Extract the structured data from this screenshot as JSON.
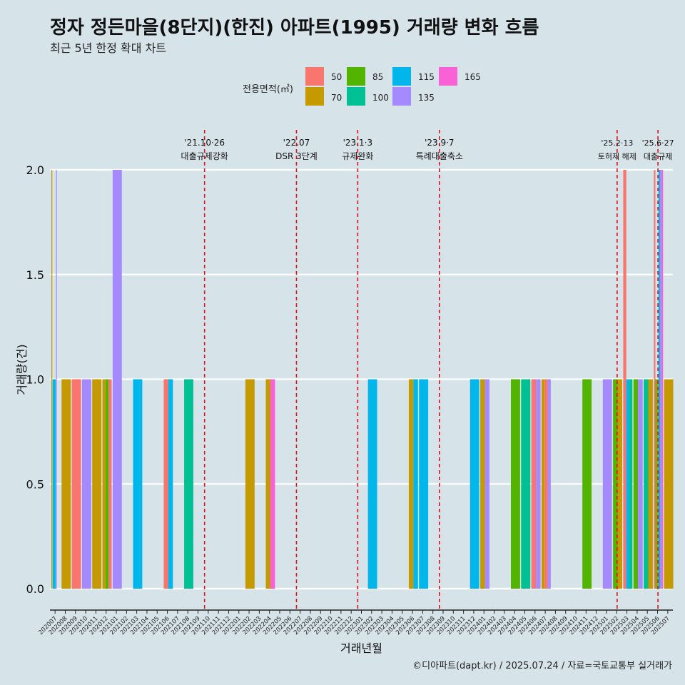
{
  "title": "정자 정든마을(8단지)(한진) 아파트(1995) 거래량 변화 흐름",
  "subtitle": "최근 5년 한정 확대 차트",
  "caption": "©디아파트(dapt.kr) / 2025.07.24 / 자료=국토교통부 실거래가",
  "legend": {
    "title": "전용면적(㎡)",
    "items": [
      {
        "label": "50",
        "color": "#F8766D"
      },
      {
        "label": "70",
        "color": "#C49A00"
      },
      {
        "label": "85",
        "color": "#53B400"
      },
      {
        "label": "100",
        "color": "#00C094"
      },
      {
        "label": "115",
        "color": "#00B6EB"
      },
      {
        "label": "135",
        "color": "#A58AFF"
      },
      {
        "label": "165",
        "color": "#FB61D7"
      }
    ]
  },
  "chart_data": {
    "type": "bar",
    "xlabel": "거래년월",
    "ylabel": "거래량(건)",
    "ylim": [
      0,
      2.12
    ],
    "yticks": [
      0.0,
      0.5,
      1.0,
      1.5,
      2.0
    ],
    "ytick_labels": [
      "0.0",
      "0.5",
      "1.0",
      "1.5",
      "2.0"
    ],
    "categories": [
      "202007",
      "202008",
      "202009",
      "202010",
      "202011",
      "202012",
      "202101",
      "202102",
      "202103",
      "202104",
      "202105",
      "202106",
      "202107",
      "202108",
      "202109",
      "202110",
      "202111",
      "202112",
      "202201",
      "202202",
      "202203",
      "202204",
      "202205",
      "202206",
      "202207",
      "202208",
      "202209",
      "202210",
      "202211",
      "202212",
      "202301",
      "202302",
      "202303",
      "202304",
      "202305",
      "202306",
      "202307",
      "202308",
      "202309",
      "202310",
      "202311",
      "202312",
      "202401",
      "202402",
      "202403",
      "202404",
      "202405",
      "202406",
      "202407",
      "202408",
      "202409",
      "202410",
      "202411",
      "202412",
      "202501",
      "202502",
      "202503",
      "202504",
      "202505",
      "202506",
      "202507"
    ],
    "bars": [
      {
        "x": 0.0,
        "w": 0.09,
        "value": 2,
        "color": "#C49A00"
      },
      {
        "x": 0.12,
        "w": 0.3,
        "value": 1,
        "color": "#00B6EB"
      },
      {
        "x": 0.45,
        "w": 0.09,
        "value": 2,
        "color": "#A58AFF"
      },
      {
        "x": 1.0,
        "w": 0.9,
        "value": 1,
        "color": "#C49A00"
      },
      {
        "x": 2.0,
        "w": 0.9,
        "value": 1,
        "color": "#F8766D"
      },
      {
        "x": 3.0,
        "w": 0.9,
        "value": 1,
        "color": "#A58AFF"
      },
      {
        "x": 4.0,
        "w": 0.9,
        "value": 1,
        "color": "#C49A00"
      },
      {
        "x": 5.0,
        "w": 0.3,
        "value": 1,
        "color": "#C49A00"
      },
      {
        "x": 5.3,
        "w": 0.3,
        "value": 1,
        "color": "#53B400"
      },
      {
        "x": 5.6,
        "w": 0.3,
        "value": 1,
        "color": "#F8766D"
      },
      {
        "x": 6.0,
        "w": 0.9,
        "value": 2,
        "color": "#A58AFF"
      },
      {
        "x": 8.0,
        "w": 0.9,
        "value": 1,
        "color": "#00B6EB"
      },
      {
        "x": 11.0,
        "w": 0.45,
        "value": 1,
        "color": "#F8766D"
      },
      {
        "x": 11.45,
        "w": 0.45,
        "value": 1,
        "color": "#00B6EB"
      },
      {
        "x": 13.0,
        "w": 0.9,
        "value": 1,
        "color": "#00C094"
      },
      {
        "x": 19.0,
        "w": 0.9,
        "value": 1,
        "color": "#C49A00"
      },
      {
        "x": 21.0,
        "w": 0.45,
        "value": 1,
        "color": "#C49A00"
      },
      {
        "x": 21.45,
        "w": 0.45,
        "value": 1,
        "color": "#FB61D7"
      },
      {
        "x": 31.0,
        "w": 0.9,
        "value": 1,
        "color": "#00B6EB"
      },
      {
        "x": 35.0,
        "w": 0.45,
        "value": 1,
        "color": "#C49A00"
      },
      {
        "x": 35.45,
        "w": 0.45,
        "value": 1,
        "color": "#00B6EB"
      },
      {
        "x": 36.0,
        "w": 0.9,
        "value": 1,
        "color": "#00B6EB"
      },
      {
        "x": 41.0,
        "w": 0.9,
        "value": 1,
        "color": "#00B6EB"
      },
      {
        "x": 42.0,
        "w": 0.45,
        "value": 1,
        "color": "#C49A00"
      },
      {
        "x": 42.45,
        "w": 0.45,
        "value": 1,
        "color": "#A58AFF"
      },
      {
        "x": 45.0,
        "w": 0.9,
        "value": 1,
        "color": "#53B400"
      },
      {
        "x": 46.0,
        "w": 0.9,
        "value": 1,
        "color": "#00C094"
      },
      {
        "x": 47.0,
        "w": 0.45,
        "value": 1,
        "color": "#F8766D"
      },
      {
        "x": 47.45,
        "w": 0.45,
        "value": 1,
        "color": "#A58AFF"
      },
      {
        "x": 48.0,
        "w": 0.3,
        "value": 1,
        "color": "#C49A00"
      },
      {
        "x": 48.3,
        "w": 0.3,
        "value": 1,
        "color": "#F8766D"
      },
      {
        "x": 48.6,
        "w": 0.3,
        "value": 1,
        "color": "#A58AFF"
      },
      {
        "x": 52.0,
        "w": 0.9,
        "value": 1,
        "color": "#53B400"
      },
      {
        "x": 54.0,
        "w": 0.9,
        "value": 1,
        "color": "#A58AFF"
      },
      {
        "x": 55.0,
        "w": 0.45,
        "value": 1,
        "color": "#53B400"
      },
      {
        "x": 55.45,
        "w": 0.45,
        "value": 1,
        "color": "#C49A00"
      },
      {
        "x": 56.0,
        "w": 0.3,
        "value": 2,
        "color": "#F8766D"
      },
      {
        "x": 56.3,
        "w": 0.3,
        "value": 1,
        "color": "#00B6EB"
      },
      {
        "x": 56.6,
        "w": 0.3,
        "value": 1,
        "color": "#00C094"
      },
      {
        "x": 57.0,
        "w": 0.45,
        "value": 1,
        "color": "#53B400"
      },
      {
        "x": 57.45,
        "w": 0.45,
        "value": 1,
        "color": "#A58AFF"
      },
      {
        "x": 58.0,
        "w": 0.45,
        "value": 1,
        "color": "#00C094"
      },
      {
        "x": 58.45,
        "w": 0.45,
        "value": 1,
        "color": "#C49A00"
      },
      {
        "x": 59.0,
        "w": 0.15,
        "value": 2,
        "color": "#F8766D"
      },
      {
        "x": 59.15,
        "w": 0.15,
        "value": 1,
        "color": "#53B400"
      },
      {
        "x": 59.3,
        "w": 0.15,
        "value": 1,
        "color": "#C49A00"
      },
      {
        "x": 59.45,
        "w": 0.15,
        "value": 2,
        "color": "#00B6EB"
      },
      {
        "x": 59.6,
        "w": 0.15,
        "value": 2,
        "color": "#A58AFF"
      },
      {
        "x": 59.75,
        "w": 0.15,
        "value": 2,
        "color": "#FB61D7"
      },
      {
        "x": 60.0,
        "w": 0.9,
        "value": 1,
        "color": "#C49A00"
      }
    ],
    "vlines": [
      {
        "x": 15.0,
        "date": "'21.10·26",
        "label": "대출규제강화"
      },
      {
        "x": 24.0,
        "date": "'22.07",
        "label": "DSR 3단계"
      },
      {
        "x": 30.0,
        "date": "'23.1·3",
        "label": "규제완화"
      },
      {
        "x": 38.0,
        "date": "'23.9·7",
        "label": "특례대출축소"
      },
      {
        "x": 55.4,
        "date": "'25.2·13",
        "label": "토허제 해제"
      },
      {
        "x": 59.4,
        "date": "'25.6·27",
        "label": "대출규제"
      }
    ]
  }
}
